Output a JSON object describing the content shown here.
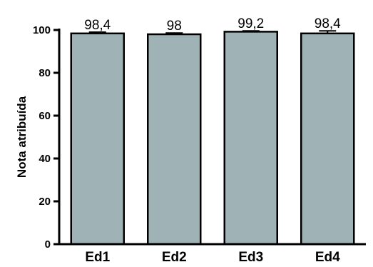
{
  "chart_data": {
    "type": "bar",
    "categories": [
      "Ed1",
      "Ed2",
      "Ed3",
      "Ed4"
    ],
    "values": [
      98.4,
      98,
      99.2,
      98.4
    ],
    "data_labels": [
      "98,4",
      "98",
      "99,2",
      "98,4"
    ],
    "error_upper": [
      0.6,
      0.6,
      0.4,
      1.2
    ],
    "ylabel": "Nota atribuída",
    "ylim": [
      0,
      100
    ],
    "yticks": [
      0,
      20,
      40,
      60,
      80,
      100
    ],
    "ytick_labels": [
      "0",
      "20",
      "40",
      "60",
      "80",
      "100"
    ],
    "bar_color": "#9fb2b5",
    "grid": false
  }
}
